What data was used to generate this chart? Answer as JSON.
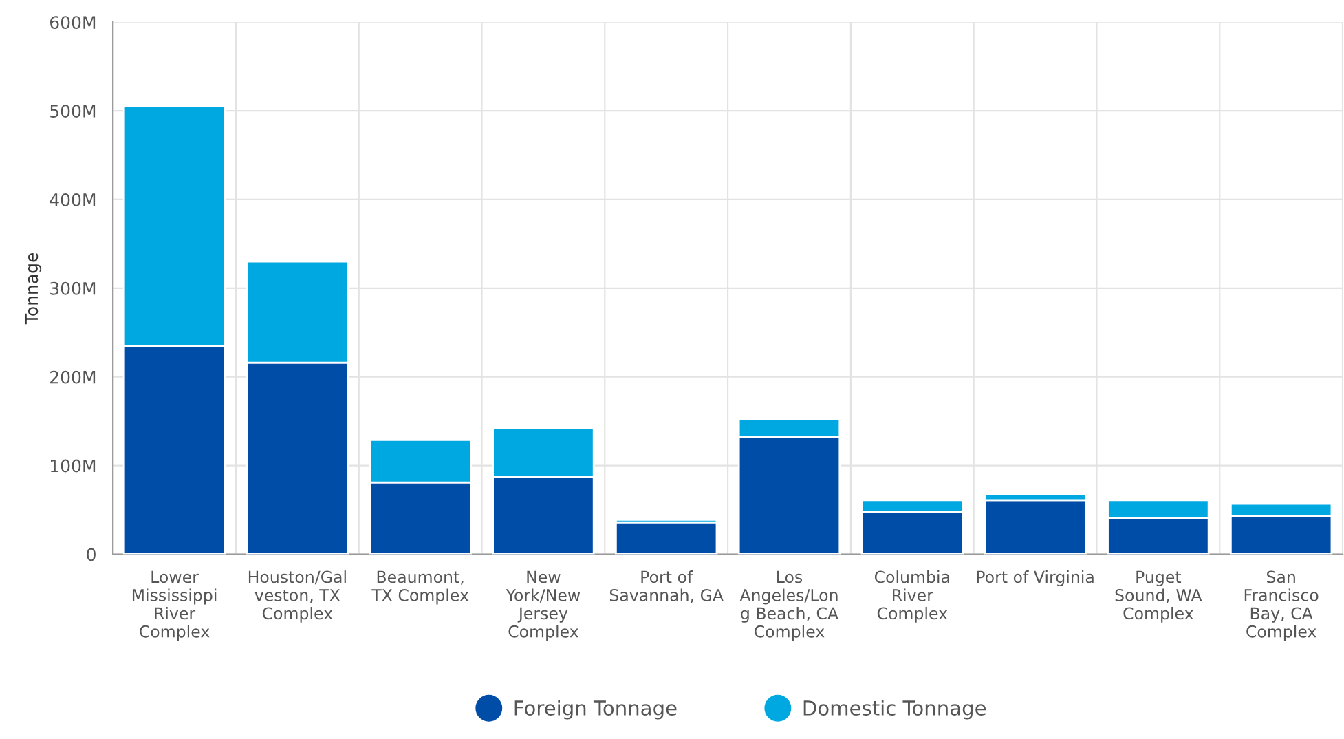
{
  "chart_data": {
    "type": "bar",
    "stacked": true,
    "ylabel": "Tonnage",
    "categories": [
      "Lower\nMississippi\nRiver\nComplex",
      "Houston/Gal\nveston, TX\nComplex",
      "Beaumont,\nTX Complex",
      "New\nYork/New\nJersey\nComplex",
      "Port of\nSavannah, GA",
      "Los\nAngeles/Lon\ng Beach, CA\nComplex",
      "Columbia\nRiver\nComplex",
      "Port of Virginia",
      "Puget\nSound, WA\nComplex",
      "San\nFrancisco\nBay, CA\nComplex"
    ],
    "series": [
      {
        "name": "Foreign Tonnage",
        "color": "#004da8",
        "values": [
          235000000,
          216000000,
          81000000,
          87000000,
          36000000,
          132000000,
          48000000,
          61000000,
          41000000,
          43000000
        ]
      },
      {
        "name": "Domestic Tonnage",
        "color": "#00a8e1",
        "values": [
          270000000,
          114000000,
          48000000,
          55000000,
          3000000,
          20000000,
          13000000,
          7000000,
          20000000,
          14000000
        ]
      }
    ],
    "ylim": [
      0,
      600000000
    ],
    "yticks": [
      {
        "value": 0,
        "label": "0"
      },
      {
        "value": 100000000,
        "label": "100M"
      },
      {
        "value": 200000000,
        "label": "200M"
      },
      {
        "value": 300000000,
        "label": "300M"
      },
      {
        "value": 400000000,
        "label": "400M"
      },
      {
        "value": 500000000,
        "label": "500M"
      },
      {
        "value": 600000000,
        "label": "600M"
      }
    ],
    "grid": true,
    "legend": "bottom"
  }
}
